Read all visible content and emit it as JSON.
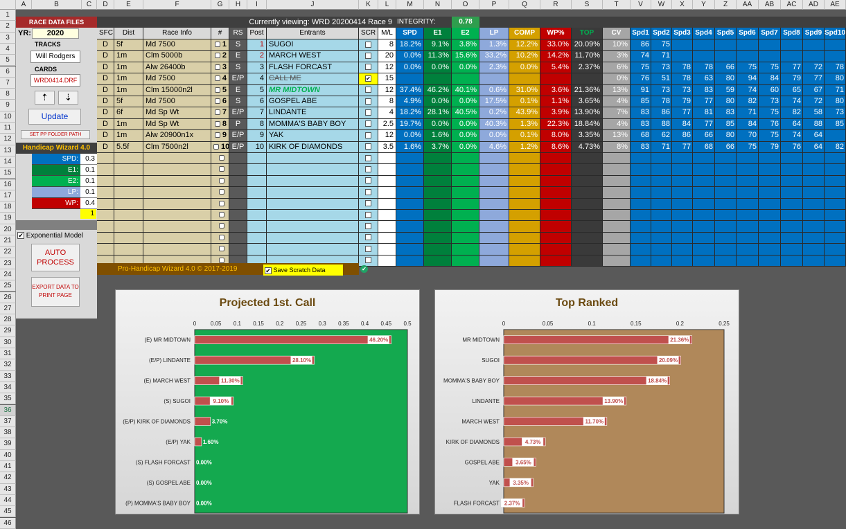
{
  "columns": [
    "A",
    "B",
    "C",
    "D",
    "E",
    "F",
    "G",
    "H",
    "I",
    "J",
    "K",
    "L",
    "M",
    "N",
    "O",
    "P",
    "Q",
    "R",
    "S",
    "T",
    "V",
    "W",
    "X",
    "Y",
    "Z",
    "AA",
    "AB",
    "AC",
    "AD",
    "AE"
  ],
  "rows": [
    "1",
    "2",
    "3",
    "4",
    "5",
    "6",
    "7",
    "8",
    "9",
    "10",
    "11",
    "12",
    "13",
    "14",
    "15",
    "16",
    "17",
    "18",
    "19",
    "20",
    "21",
    "22",
    "23",
    "24",
    "25",
    "26",
    "27",
    "28",
    "29",
    "30",
    "31",
    "32",
    "33",
    "34",
    "35",
    "36",
    "37",
    "38",
    "39",
    "40",
    "41",
    "42",
    "43",
    "44",
    "45",
    "46"
  ],
  "left_panel": {
    "race_data_files": "RACE DATA FILES",
    "yr_label": "YR:",
    "yr_value": "2020",
    "tracks_label": "TRACKS",
    "track_value": "Will Rodgers",
    "cards_label": "CARDS",
    "card_value": "WRD0414.DRF",
    "up_button": "⇡",
    "down_button": "⇣",
    "update_button": "Update",
    "set_pp": "SET PP FOLDER PATH",
    "wizard_title": "Handicap Wizard 4.0",
    "weights": [
      {
        "label": "SPD:",
        "value": "0.3",
        "color": "#0070c0"
      },
      {
        "label": "E1:",
        "value": "0.1",
        "color": "#00803c"
      },
      {
        "label": "E2:",
        "value": "0.1",
        "color": "#00b050"
      },
      {
        "label": "LP:",
        "value": "0.1",
        "color": "#8ea9db"
      },
      {
        "label": "WP:",
        "value": "0.4",
        "color": "#c00000"
      }
    ],
    "total": "1",
    "exponential_label": "Exponential Model",
    "auto_process": "AUTO PROCESS",
    "export": "EXPORT DATA TO PRINT PAGE"
  },
  "header": {
    "viewing": "Currently viewing: WRD 20200414 Race 9",
    "integrity_label": "INTEGRITY:",
    "integrity_value": "0.78"
  },
  "col_titles": {
    "sfc": "SFC",
    "dist": "Dist",
    "race_info": "Race Info",
    "num": "#",
    "rs": "RS",
    "post": "Post",
    "entrants": "Entrants",
    "scr": "SCR",
    "ml": "M/L",
    "spd": "SPD",
    "e1": "E1",
    "e2": "E2",
    "lp": "LP",
    "comp": "COMP",
    "wp": "WP%",
    "top": "TOP",
    "cv": "CV",
    "spds": [
      "Spd1",
      "Spd2",
      "Spd3",
      "Spd4",
      "Spd5",
      "Spd6",
      "Spd7",
      "Spd8",
      "Spd9",
      "Spd10"
    ]
  },
  "entries": [
    {
      "sfc": "D",
      "dist": "5f",
      "info": "Md 7500",
      "num": "1",
      "rs": "S",
      "post": "1",
      "name": "SUGOI",
      "scr": "",
      "ml": "8",
      "spd": "18.2%",
      "e1": "9.1%",
      "e2": "3.8%",
      "lp": "1.3%",
      "comp": "12.2%",
      "wp": "33.0%",
      "top": "20.09%",
      "cv": "10%",
      "spd_vals": [
        "86",
        "75",
        "",
        "",
        "",
        "",
        "",
        "",
        "",
        ""
      ]
    },
    {
      "sfc": "D",
      "dist": "1m",
      "info": "Clm 5000b",
      "num": "2",
      "rs": "E",
      "post": "2",
      "name": "MARCH WEST",
      "scr": "",
      "ml": "20",
      "spd": "0.0%",
      "e1": "11.3%",
      "e2": "15.6%",
      "lp": "33.2%",
      "comp": "10.2%",
      "wp": "14.2%",
      "top": "11.70%",
      "cv": "3%",
      "spd_vals": [
        "74",
        "71",
        "",
        "",
        "",
        "",
        "",
        "",
        "",
        ""
      ]
    },
    {
      "sfc": "D",
      "dist": "1m",
      "info": "Alw 26400b",
      "num": "3",
      "rs": "S",
      "post": "3",
      "name": "FLASH FORCAST",
      "scr": "",
      "ml": "12",
      "spd": "0.0%",
      "e1": "0.0%",
      "e2": "0.0%",
      "lp": "2.3%",
      "comp": "0.0%",
      "wp": "5.4%",
      "top": "2.37%",
      "cv": "6%",
      "spd_vals": [
        "75",
        "73",
        "78",
        "78",
        "66",
        "75",
        "75",
        "77",
        "72",
        "78"
      ]
    },
    {
      "sfc": "D",
      "dist": "1m",
      "info": "Md 7500",
      "num": "4",
      "rs": "E/P",
      "post": "4",
      "name": "CALL ME",
      "scr": "✔",
      "ml": "15",
      "spd": "",
      "e1": "",
      "e2": "",
      "lp": "",
      "comp": "",
      "wp": "",
      "top": "",
      "cv": "0%",
      "spd_vals": [
        "76",
        "51",
        "78",
        "63",
        "80",
        "94",
        "84",
        "79",
        "77",
        "80"
      ]
    },
    {
      "sfc": "D",
      "dist": "1m",
      "info": "Clm 15000n2l",
      "num": "5",
      "rs": "E",
      "post": "5",
      "name": "MR MIDTOWN",
      "scr": "",
      "ml": "12",
      "spd": "37.4%",
      "e1": "46.2%",
      "e2": "40.1%",
      "lp": "0.6%",
      "comp": "31.0%",
      "wp": "3.6%",
      "top": "21.36%",
      "cv": "13%",
      "spd_vals": [
        "91",
        "73",
        "73",
        "83",
        "59",
        "74",
        "60",
        "65",
        "67",
        "71"
      ]
    },
    {
      "sfc": "D",
      "dist": "5f",
      "info": "Md 7500",
      "num": "6",
      "rs": "S",
      "post": "6",
      "name": "GOSPEL ABE",
      "scr": "",
      "ml": "8",
      "spd": "4.9%",
      "e1": "0.0%",
      "e2": "0.0%",
      "lp": "17.5%",
      "comp": "0.1%",
      "wp": "1.1%",
      "top": "3.65%",
      "cv": "4%",
      "spd_vals": [
        "85",
        "78",
        "79",
        "77",
        "80",
        "82",
        "73",
        "74",
        "72",
        "80"
      ]
    },
    {
      "sfc": "D",
      "dist": "6f",
      "info": "Md Sp Wt",
      "num": "7",
      "rs": "E/P",
      "post": "7",
      "name": "LINDANTE",
      "scr": "",
      "ml": "4",
      "spd": "18.2%",
      "e1": "28.1%",
      "e2": "40.5%",
      "lp": "0.2%",
      "comp": "43.9%",
      "wp": "3.9%",
      "top": "13.90%",
      "cv": "7%",
      "spd_vals": [
        "83",
        "86",
        "77",
        "81",
        "83",
        "71",
        "75",
        "82",
        "58",
        "73"
      ]
    },
    {
      "sfc": "D",
      "dist": "1m",
      "info": "Md Sp Wt",
      "num": "8",
      "rs": "P",
      "post": "8",
      "name": "MOMMA'S BABY BOY",
      "scr": "",
      "ml": "2.5",
      "spd": "19.7%",
      "e1": "0.0%",
      "e2": "0.0%",
      "lp": "40.3%",
      "comp": "1.3%",
      "wp": "22.3%",
      "top": "18.84%",
      "cv": "4%",
      "spd_vals": [
        "83",
        "88",
        "84",
        "77",
        "85",
        "84",
        "76",
        "64",
        "88",
        "85"
      ]
    },
    {
      "sfc": "D",
      "dist": "1m",
      "info": "Alw 20900n1x",
      "num": "9",
      "rs": "E/P",
      "post": "9",
      "name": "YAK",
      "scr": "",
      "ml": "12",
      "spd": "0.0%",
      "e1": "1.6%",
      "e2": "0.0%",
      "lp": "0.0%",
      "comp": "0.1%",
      "wp": "8.0%",
      "top": "3.35%",
      "cv": "13%",
      "spd_vals": [
        "68",
        "62",
        "86",
        "66",
        "80",
        "70",
        "75",
        "74",
        "64",
        ""
      ]
    },
    {
      "sfc": "D",
      "dist": "5.5f",
      "info": "Clm 7500n2l",
      "num": "10",
      "rs": "E/P",
      "post": "10",
      "name": "KIRK OF DIAMONDS",
      "scr": "",
      "ml": "3.5",
      "spd": "1.6%",
      "e1": "3.7%",
      "e2": "0.0%",
      "lp": "4.6%",
      "comp": "1.2%",
      "wp": "8.6%",
      "top": "4.73%",
      "cv": "8%",
      "spd_vals": [
        "83",
        "71",
        "77",
        "68",
        "66",
        "75",
        "79",
        "76",
        "64",
        "82"
      ]
    }
  ],
  "footer": {
    "copyright": "Pro-Handicap Wizard 4.0 © 2017-2019",
    "save_scratch": "Save Scratch Data"
  },
  "chart_data": [
    {
      "type": "bar",
      "title": "Projected 1st. Call",
      "xlim": [
        0,
        0.5
      ],
      "ticks": [
        "0",
        "0.05",
        "0.1",
        "0.15",
        "0.2",
        "0.25",
        "0.3",
        "0.35",
        "0.4",
        "0.45",
        "0.5"
      ],
      "categories": [
        "(E) MR MIDTOWN",
        "(E/P) LINDANTE",
        "(E) MARCH WEST",
        "(S) SUGOI",
        "(E/P) KIRK OF DIAMONDS",
        "(E/P) YAK",
        "(S) FLASH FORCAST",
        "(S) GOSPEL ABE",
        "(P) MOMMA'S BABY BOY"
      ],
      "values": [
        0.462,
        0.281,
        0.113,
        0.091,
        0.037,
        0.016,
        0,
        0,
        0
      ],
      "labels": [
        "46.20%",
        "28.10%",
        "11.30%",
        "9.10%",
        "3.70%",
        "1.60%",
        "0.00%",
        "0.00%",
        "0.00%"
      ],
      "plot_color": "#14a94f"
    },
    {
      "type": "bar",
      "title": "Top Ranked",
      "xlim": [
        0,
        0.25
      ],
      "ticks": [
        "0",
        "0.05",
        "0.1",
        "0.15",
        "0.2",
        "0.25"
      ],
      "categories": [
        "MR MIDTOWN",
        "SUGOI",
        "MOMMA'S BABY BOY",
        "LINDANTE",
        "MARCH WEST",
        "KIRK OF DIAMONDS",
        "GOSPEL ABE",
        "YAK",
        "FLASH FORCAST"
      ],
      "values": [
        0.2136,
        0.2009,
        0.1884,
        0.139,
        0.117,
        0.0473,
        0.0365,
        0.0335,
        0.0237
      ],
      "labels": [
        "21.36%",
        "20.09%",
        "18.84%",
        "13.90%",
        "11.70%",
        "4.73%",
        "3.65%",
        "3.35%",
        "2.37%"
      ],
      "plot_color": "#b0885a"
    }
  ]
}
